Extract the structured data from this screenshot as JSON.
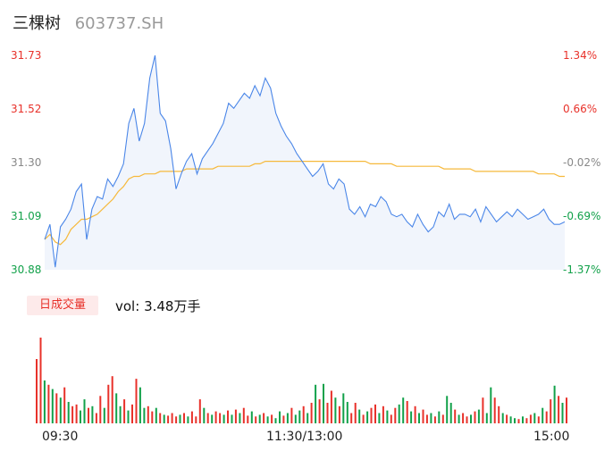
{
  "header": {
    "name": "三棵树",
    "code": "603737.SH"
  },
  "volume_tab": {
    "label": "日成交量",
    "prefix": "vol:",
    "value": "3.48万手"
  },
  "colors": {
    "price_line": "#4a86e8",
    "avg_line": "#f6b93b",
    "up": "#e8312a",
    "down": "#12a14a",
    "neutral": "#888888"
  },
  "chart_data": [
    {
      "type": "line",
      "title": "",
      "y_ticks_left": [
        "31.73",
        "31.52",
        "31.30",
        "31.09",
        "30.88"
      ],
      "y_ticks_right": [
        "1.34%",
        "0.66%",
        "-0.02%",
        "-0.69%",
        "-1.37%"
      ],
      "ylim": [
        30.88,
        31.73
      ],
      "x_ticks": [
        "09:30",
        "11:30/13:00",
        "15:00"
      ],
      "series": [
        {
          "values": [
            31.0,
            31.06,
            30.89,
            31.05,
            31.08,
            31.12,
            31.19,
            31.22,
            31.0,
            31.12,
            31.17,
            31.16,
            31.24,
            31.21,
            31.25,
            31.3,
            31.46,
            31.52,
            31.39,
            31.46,
            31.64,
            31.73,
            31.5,
            31.47,
            31.36,
            31.2,
            31.26,
            31.31,
            31.34,
            31.26,
            31.32,
            31.35,
            31.38,
            31.42,
            31.46,
            31.54,
            31.52,
            31.55,
            31.58,
            31.56,
            31.61,
            31.57,
            31.64,
            31.6,
            31.5,
            31.45,
            31.41,
            31.38,
            31.34,
            31.31,
            31.28,
            31.25,
            31.27,
            31.3,
            31.22,
            31.2,
            31.24,
            31.22,
            31.12,
            31.1,
            31.13,
            31.09,
            31.14,
            31.13,
            31.17,
            31.15,
            31.1,
            31.09,
            31.1,
            31.07,
            31.05,
            31.1,
            31.06,
            31.03,
            31.05,
            31.11,
            31.09,
            31.14,
            31.08,
            31.1,
            31.1,
            31.09,
            31.12,
            31.07,
            31.13,
            31.1,
            31.07,
            31.09,
            31.11,
            31.09,
            31.12,
            31.1,
            31.08,
            31.09,
            31.1,
            31.12,
            31.08,
            31.06,
            31.06,
            31.07
          ]
        },
        {
          "values": [
            31.0,
            31.02,
            30.99,
            30.98,
            31.0,
            31.04,
            31.06,
            31.08,
            31.08,
            31.09,
            31.1,
            31.12,
            31.14,
            31.16,
            31.19,
            31.21,
            31.24,
            31.25,
            31.25,
            31.26,
            31.26,
            31.26,
            31.27,
            31.27,
            31.27,
            31.27,
            31.27,
            31.28,
            31.28,
            31.28,
            31.28,
            31.28,
            31.28,
            31.29,
            31.29,
            31.29,
            31.29,
            31.29,
            31.29,
            31.29,
            31.3,
            31.3,
            31.31,
            31.31,
            31.31,
            31.31,
            31.31,
            31.31,
            31.31,
            31.31,
            31.31,
            31.31,
            31.31,
            31.31,
            31.31,
            31.31,
            31.31,
            31.31,
            31.31,
            31.31,
            31.31,
            31.31,
            31.3,
            31.3,
            31.3,
            31.3,
            31.3,
            31.29,
            31.29,
            31.29,
            31.29,
            31.29,
            31.29,
            31.29,
            31.29,
            31.29,
            31.28,
            31.28,
            31.28,
            31.28,
            31.28,
            31.28,
            31.27,
            31.27,
            31.27,
            31.27,
            31.27,
            31.27,
            31.27,
            31.27,
            31.27,
            31.27,
            31.27,
            31.27,
            31.26,
            31.26,
            31.26,
            31.26,
            31.25,
            31.25
          ]
        }
      ]
    },
    {
      "type": "bar",
      "title": "",
      "values": [
        75,
        100,
        50,
        45,
        40,
        35,
        30,
        42,
        25,
        20,
        22,
        15,
        28,
        18,
        20,
        12,
        32,
        18,
        45,
        55,
        35,
        20,
        28,
        15,
        22,
        52,
        42,
        18,
        20,
        14,
        18,
        12,
        10,
        9,
        12,
        8,
        10,
        12,
        8,
        14,
        8,
        28,
        18,
        12,
        10,
        14,
        12,
        10,
        15,
        10,
        16,
        12,
        18,
        9,
        14,
        8,
        10,
        12,
        8,
        10,
        6,
        14,
        9,
        12,
        18,
        10,
        15,
        20,
        12,
        24,
        45,
        28,
        46,
        24,
        38,
        30,
        20,
        35,
        25,
        12,
        24,
        16,
        10,
        14,
        18,
        22,
        12,
        20,
        15,
        10,
        18,
        22,
        30,
        26,
        14,
        20,
        12,
        16,
        10,
        12,
        8,
        14,
        10,
        32,
        24,
        16,
        10,
        12,
        8,
        10,
        14,
        16,
        30,
        12,
        42,
        30,
        20,
        12,
        10,
        8,
        6,
        5,
        8,
        6,
        10,
        12,
        8,
        18,
        14,
        28,
        44,
        32,
        24,
        30
      ],
      "up": [
        1,
        1,
        0,
        1,
        0,
        1,
        0,
        1,
        0,
        1,
        1,
        0,
        0,
        1,
        0,
        1,
        1,
        0,
        1,
        1,
        0,
        0,
        1,
        0,
        1,
        1,
        0,
        0,
        1,
        1,
        0,
        1,
        0,
        1,
        1,
        1,
        0,
        1,
        0,
        1,
        1,
        1,
        0,
        1,
        0,
        1,
        1,
        0,
        1,
        0,
        1,
        0,
        1,
        1,
        0,
        1,
        0,
        1,
        0,
        1,
        0,
        0,
        1,
        0,
        1,
        0,
        0,
        1,
        0,
        1,
        0,
        1,
        0,
        1,
        1,
        0,
        1,
        0,
        0,
        1,
        1,
        0,
        1,
        0,
        1,
        1,
        0,
        1,
        0,
        1,
        1,
        0,
        0,
        1,
        0,
        1,
        0,
        1,
        1,
        0,
        1,
        0,
        1,
        0,
        0,
        1,
        0,
        1,
        1,
        0,
        1,
        0,
        1,
        0,
        0,
        1,
        1,
        0,
        1,
        0,
        0,
        1,
        0,
        1,
        1,
        0,
        1,
        0,
        1,
        1,
        0,
        1,
        0,
        1
      ]
    }
  ]
}
